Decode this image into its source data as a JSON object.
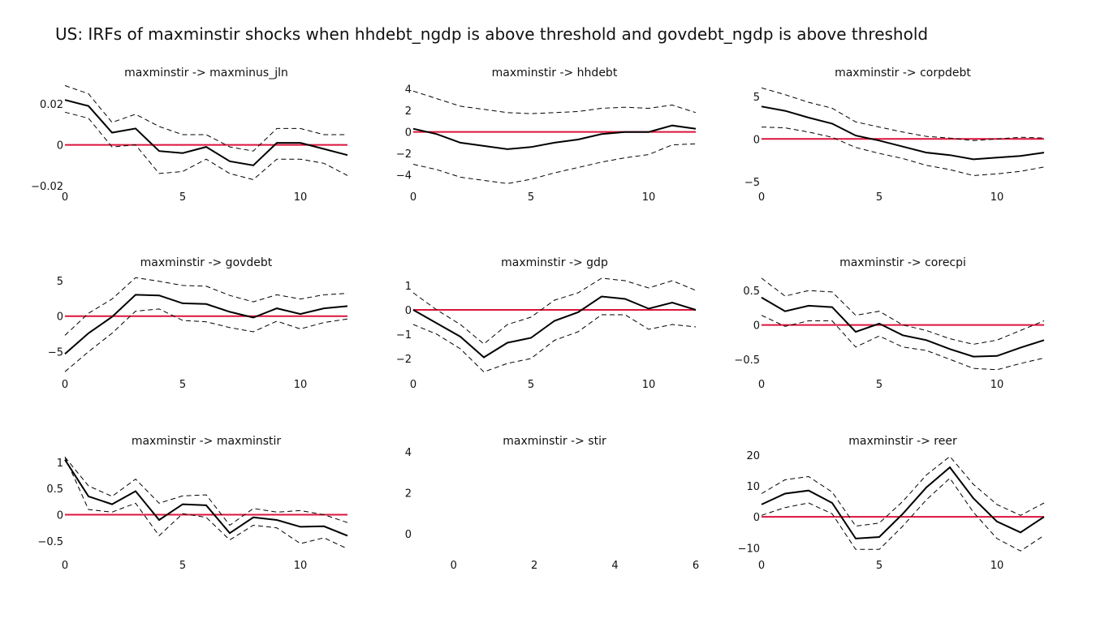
{
  "title": "US: IRFs of maxminstir shocks when hhdebt_ngdp is above threshold and govdebt_ngdp is above threshold",
  "colors": {
    "irf": "#000000",
    "band": "#000000",
    "zero_line": "#dc143c",
    "text": "#111111"
  },
  "chart_data": [
    {
      "type": "line",
      "title": "maxminstir -> maxminus_jln",
      "x": [
        0,
        1,
        2,
        3,
        4,
        5,
        6,
        7,
        8,
        9,
        10,
        11,
        12
      ],
      "series": [
        {
          "values": [
            0.022,
            0.019,
            0.006,
            0.008,
            -0.003,
            -0.004,
            -0.001,
            -0.008,
            -0.01,
            0.001,
            0.001,
            -0.002,
            -0.005
          ]
        },
        {
          "values": [
            0.029,
            0.025,
            0.011,
            0.015,
            0.009,
            0.005,
            0.005,
            -0.001,
            -0.003,
            0.008,
            0.008,
            0.005,
            0.005
          ]
        },
        {
          "values": [
            0.016,
            0.013,
            -0.001,
            0.0,
            -0.014,
            -0.013,
            -0.007,
            -0.014,
            -0.017,
            -0.007,
            -0.007,
            -0.009,
            -0.015
          ]
        }
      ],
      "xlim": [
        0,
        12
      ],
      "ylim": [
        -0.02,
        0.03
      ],
      "xticks": [
        0,
        5,
        10
      ],
      "yticks": [
        -0.02,
        0,
        0.02
      ],
      "ytick_labels": [
        "−0.02",
        "0",
        "0.02"
      ],
      "hline": 0
    },
    {
      "type": "line",
      "title": "maxminstir -> hhdebt",
      "x": [
        0,
        1,
        2,
        3,
        4,
        5,
        6,
        7,
        8,
        9,
        10,
        11,
        12
      ],
      "series": [
        {
          "values": [
            0.3,
            -0.2,
            -1.0,
            -1.3,
            -1.6,
            -1.4,
            -1.0,
            -0.7,
            -0.2,
            0.0,
            0.0,
            0.6,
            0.3
          ]
        },
        {
          "values": [
            3.8,
            3.1,
            2.4,
            2.1,
            1.8,
            1.7,
            1.8,
            1.9,
            2.2,
            2.3,
            2.2,
            2.5,
            1.8
          ]
        },
        {
          "values": [
            -3.0,
            -3.5,
            -4.2,
            -4.5,
            -4.8,
            -4.4,
            -3.8,
            -3.3,
            -2.8,
            -2.4,
            -2.1,
            -1.2,
            -1.1
          ]
        }
      ],
      "xlim": [
        0,
        12
      ],
      "ylim": [
        -5,
        4.5
      ],
      "xticks": [
        0,
        5,
        10
      ],
      "yticks": [
        -4,
        -2,
        0,
        2,
        4
      ],
      "ytick_labels": [
        "−4",
        "−2",
        "0",
        "2",
        "4"
      ],
      "hline": 0
    },
    {
      "type": "line",
      "title": "maxminstir -> corpdebt",
      "x": [
        0,
        1,
        2,
        3,
        4,
        5,
        6,
        7,
        8,
        9,
        10,
        11,
        12
      ],
      "series": [
        {
          "values": [
            3.8,
            3.3,
            2.5,
            1.8,
            0.4,
            -0.2,
            -0.9,
            -1.6,
            -1.9,
            -2.4,
            -2.2,
            -2.0,
            -1.6
          ]
        },
        {
          "values": [
            6.0,
            5.2,
            4.3,
            3.6,
            2.0,
            1.4,
            0.8,
            0.3,
            0.1,
            -0.2,
            0.0,
            0.2,
            0.1
          ]
        },
        {
          "values": [
            1.4,
            1.3,
            0.8,
            0.2,
            -1.0,
            -1.7,
            -2.3,
            -3.1,
            -3.6,
            -4.3,
            -4.1,
            -3.8,
            -3.3
          ]
        }
      ],
      "xlim": [
        0,
        12
      ],
      "ylim": [
        -5.5,
        6.5
      ],
      "xticks": [
        0,
        5,
        10
      ],
      "yticks": [
        -5,
        0,
        5
      ],
      "ytick_labels": [
        "−5",
        "0",
        "5"
      ],
      "hline": 0
    },
    {
      "type": "line",
      "title": "maxminstir -> govdebt",
      "x": [
        0,
        1,
        2,
        3,
        4,
        5,
        6,
        7,
        8,
        9,
        10,
        11,
        12
      ],
      "series": [
        {
          "values": [
            -5.3,
            -2.4,
            -0.1,
            3.0,
            2.9,
            1.8,
            1.7,
            0.6,
            -0.2,
            1.1,
            0.3,
            1.1,
            1.4
          ]
        },
        {
          "values": [
            -2.7,
            0.4,
            2.4,
            5.4,
            4.9,
            4.3,
            4.2,
            2.9,
            2.0,
            3.0,
            2.4,
            3.0,
            3.2
          ]
        },
        {
          "values": [
            -7.8,
            -5.0,
            -2.4,
            0.7,
            1.0,
            -0.6,
            -0.8,
            -1.6,
            -2.2,
            -0.7,
            -1.8,
            -0.9,
            -0.4
          ]
        }
      ],
      "xlim": [
        0,
        12
      ],
      "ylim": [
        -8,
        6
      ],
      "xticks": [
        0,
        5,
        10
      ],
      "yticks": [
        -5,
        0,
        5
      ],
      "ytick_labels": [
        "−5",
        "0",
        "5"
      ],
      "hline": 0
    },
    {
      "type": "line",
      "title": "maxminstir -> gdp",
      "x": [
        0,
        1,
        2,
        3,
        4,
        5,
        6,
        7,
        8,
        9,
        10,
        11,
        12
      ],
      "series": [
        {
          "values": [
            0.0,
            -0.55,
            -1.1,
            -1.95,
            -1.35,
            -1.15,
            -0.45,
            -0.1,
            0.55,
            0.45,
            0.05,
            0.3,
            0.0
          ]
        },
        {
          "values": [
            0.7,
            0.0,
            -0.6,
            -1.4,
            -0.6,
            -0.3,
            0.4,
            0.7,
            1.3,
            1.2,
            0.9,
            1.2,
            0.8
          ]
        },
        {
          "values": [
            -0.6,
            -1.0,
            -1.6,
            -2.55,
            -2.2,
            -2.0,
            -1.25,
            -0.9,
            -0.2,
            -0.2,
            -0.8,
            -0.6,
            -0.7
          ]
        }
      ],
      "xlim": [
        0,
        12
      ],
      "ylim": [
        -2.6,
        1.5
      ],
      "xticks": [
        0,
        5,
        10
      ],
      "yticks": [
        -2,
        -1,
        0,
        1
      ],
      "ytick_labels": [
        "−2",
        "−1",
        "0",
        "1"
      ],
      "hline": 0
    },
    {
      "type": "line",
      "title": "maxminstir -> corecpi",
      "x": [
        0,
        1,
        2,
        3,
        4,
        5,
        6,
        7,
        8,
        9,
        10,
        11,
        12
      ],
      "series": [
        {
          "values": [
            0.4,
            0.2,
            0.28,
            0.26,
            -0.1,
            0.02,
            -0.15,
            -0.22,
            -0.35,
            -0.46,
            -0.45,
            -0.33,
            -0.22
          ]
        },
        {
          "values": [
            0.68,
            0.42,
            0.5,
            0.48,
            0.14,
            0.2,
            0.0,
            -0.08,
            -0.2,
            -0.28,
            -0.22,
            -0.08,
            0.06
          ]
        },
        {
          "values": [
            0.14,
            -0.02,
            0.06,
            0.06,
            -0.32,
            -0.16,
            -0.32,
            -0.37,
            -0.5,
            -0.63,
            -0.65,
            -0.56,
            -0.48
          ]
        }
      ],
      "xlim": [
        0,
        12
      ],
      "ylim": [
        -0.7,
        0.75
      ],
      "xticks": [
        0,
        5,
        10
      ],
      "yticks": [
        -0.5,
        0,
        0.5
      ],
      "ytick_labels": [
        "−0.5",
        "0",
        "0.5"
      ],
      "hline": 0
    },
    {
      "type": "line",
      "title": "maxminstir -> maxminstir",
      "x": [
        0,
        1,
        2,
        3,
        4,
        5,
        6,
        7,
        8,
        9,
        10,
        11,
        12
      ],
      "series": [
        {
          "values": [
            1.05,
            0.35,
            0.2,
            0.45,
            -0.1,
            0.2,
            0.18,
            -0.35,
            -0.05,
            -0.1,
            -0.23,
            -0.22,
            -0.4
          ]
        },
        {
          "values": [
            1.1,
            0.55,
            0.35,
            0.68,
            0.22,
            0.36,
            0.38,
            -0.2,
            0.12,
            0.05,
            0.08,
            0.0,
            -0.15
          ]
        },
        {
          "values": [
            1.1,
            0.1,
            0.05,
            0.22,
            -0.4,
            0.02,
            -0.05,
            -0.48,
            -0.2,
            -0.25,
            -0.55,
            -0.44,
            -0.65
          ]
        }
      ],
      "xlim": [
        0,
        12
      ],
      "ylim": [
        -0.75,
        1.2
      ],
      "xticks": [
        0,
        5,
        10
      ],
      "yticks": [
        -0.5,
        0,
        0.5,
        1
      ],
      "ytick_labels": [
        "−0.5",
        "0",
        "0.5",
        "1"
      ],
      "hline": 0
    },
    {
      "type": "line",
      "title": "maxminstir -> stir",
      "x": [],
      "series": [],
      "xlim": [
        -1,
        6
      ],
      "ylim": [
        -1,
        4
      ],
      "xticks": [
        0,
        2,
        4,
        6
      ],
      "yticks": [
        0,
        2,
        4
      ],
      "ytick_labels": [
        "0",
        "2",
        "4"
      ]
    },
    {
      "type": "line",
      "title": "maxminstir -> reer",
      "x": [
        0,
        1,
        2,
        3,
        4,
        5,
        6,
        7,
        8,
        9,
        10,
        11,
        12
      ],
      "series": [
        {
          "values": [
            4.0,
            7.5,
            8.5,
            4.5,
            -7.0,
            -6.5,
            1.0,
            9.5,
            16.0,
            6.0,
            -1.5,
            -5.0,
            0.0
          ]
        },
        {
          "values": [
            7.5,
            12.0,
            13.0,
            8.0,
            -3.0,
            -2.0,
            5.0,
            13.5,
            19.5,
            10.5,
            4.0,
            0.5,
            4.5
          ]
        },
        {
          "values": [
            0.5,
            3.0,
            4.5,
            1.0,
            -10.5,
            -10.5,
            -3.0,
            5.5,
            12.5,
            1.5,
            -7.0,
            -11.0,
            -6.0
          ]
        }
      ],
      "xlim": [
        0,
        12
      ],
      "ylim": [
        -12,
        21
      ],
      "xticks": [
        0,
        5,
        10
      ],
      "yticks": [
        -10,
        0,
        10,
        20
      ],
      "ytick_labels": [
        "−10",
        "0",
        "10",
        "20"
      ],
      "hline": 0
    }
  ]
}
